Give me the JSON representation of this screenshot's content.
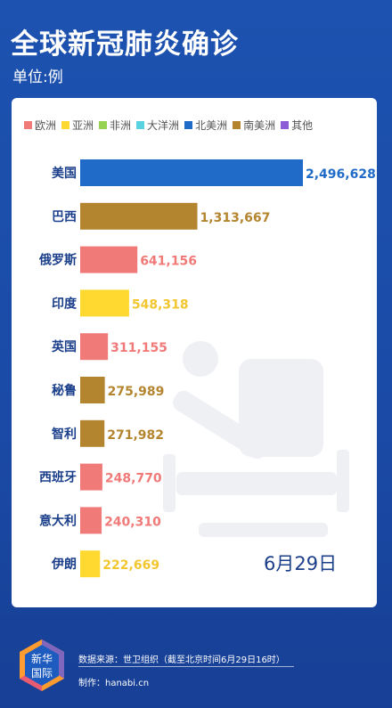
{
  "header": {
    "title": "全球新冠肺炎确诊",
    "unit": "单位:例"
  },
  "chart_data": {
    "type": "bar",
    "orientation": "horizontal",
    "legend": [
      {
        "name": "欧洲",
        "color": "#f07a78"
      },
      {
        "name": "亚洲",
        "color": "#ffd92f"
      },
      {
        "name": "非洲",
        "color": "#95d350"
      },
      {
        "name": "大洋洲",
        "color": "#5ad3e0"
      },
      {
        "name": "北美洲",
        "color": "#1f6bc7"
      },
      {
        "name": "南美洲",
        "color": "#b4852f"
      },
      {
        "name": "其他",
        "color": "#8c5bd6"
      }
    ],
    "categories": [
      "美国",
      "巴西",
      "俄罗斯",
      "印度",
      "英国",
      "秘鲁",
      "智利",
      "西班牙",
      "意大利",
      "伊朗"
    ],
    "values": [
      2496628,
      1313667,
      641156,
      548318,
      311155,
      275989,
      271982,
      248770,
      240310,
      222669
    ],
    "value_labels": [
      "2,496,628",
      "1,313,667",
      "641,156",
      "548,318",
      "311,155",
      "275,989",
      "271,982",
      "248,770",
      "240,310",
      "222,669"
    ],
    "regions": [
      "北美洲",
      "南美洲",
      "欧洲",
      "亚洲",
      "欧洲",
      "南美洲",
      "南美洲",
      "欧洲",
      "欧洲",
      "亚洲"
    ],
    "date": "6月29日"
  },
  "footer": {
    "logo_text_1": "新华",
    "logo_text_2": "国际",
    "source": "数据来源：世卫组织（截至北京时间6月29日16时）",
    "maker": "制作：hanabi.cn"
  }
}
